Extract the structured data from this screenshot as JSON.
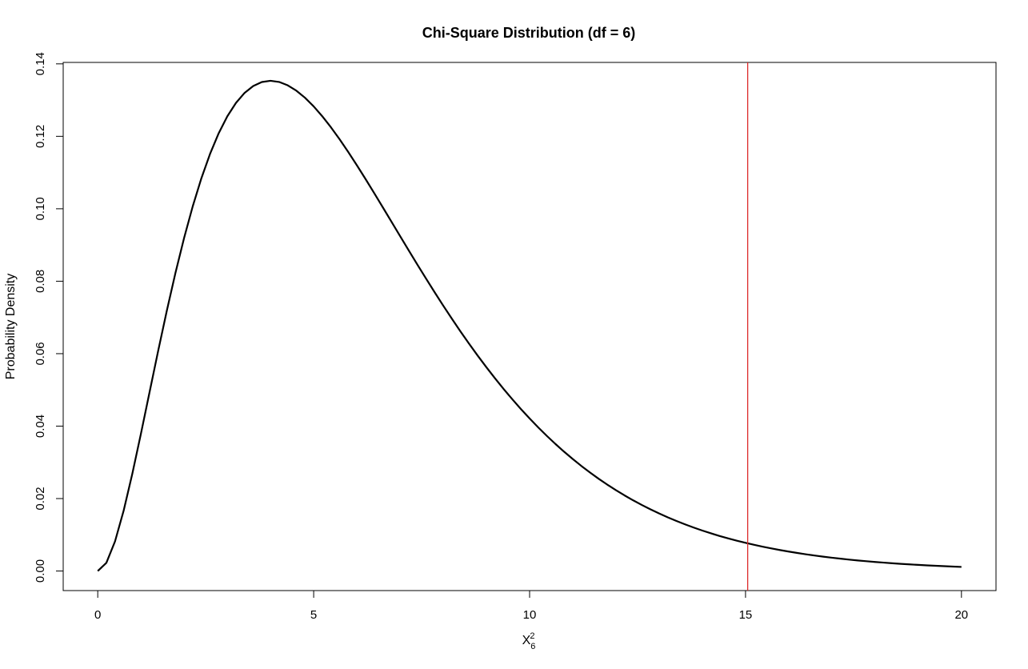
{
  "chart_data": {
    "type": "line",
    "title": "Chi-Square Distribution (df = 6)",
    "xlabel": "X",
    "xlabel_sub": "6",
    "xlabel_sup": "2",
    "ylabel": "Probability Density",
    "xlim": [
      -0.8,
      20.8
    ],
    "ylim": [
      -0.0054,
      0.1404
    ],
    "x_ticks": [
      0,
      5,
      10,
      15,
      20
    ],
    "x_tick_labels": [
      "0",
      "5",
      "10",
      "15",
      "20"
    ],
    "y_ticks": [
      0,
      0.02,
      0.04,
      0.06,
      0.08,
      0.1,
      0.12,
      0.14
    ],
    "y_tick_labels": [
      "0.00",
      "0.02",
      "0.04",
      "0.06",
      "0.08",
      "0.10",
      "0.12",
      "0.14"
    ],
    "grid": false,
    "legend": "none",
    "series": [
      {
        "df": 6,
        "x_range": [
          0,
          20
        ],
        "num_points": 101,
        "color": "#000000"
      }
    ],
    "reference_line": {
      "orientation": "vertical",
      "x": 15.05,
      "color": "#dd2a2a"
    }
  }
}
